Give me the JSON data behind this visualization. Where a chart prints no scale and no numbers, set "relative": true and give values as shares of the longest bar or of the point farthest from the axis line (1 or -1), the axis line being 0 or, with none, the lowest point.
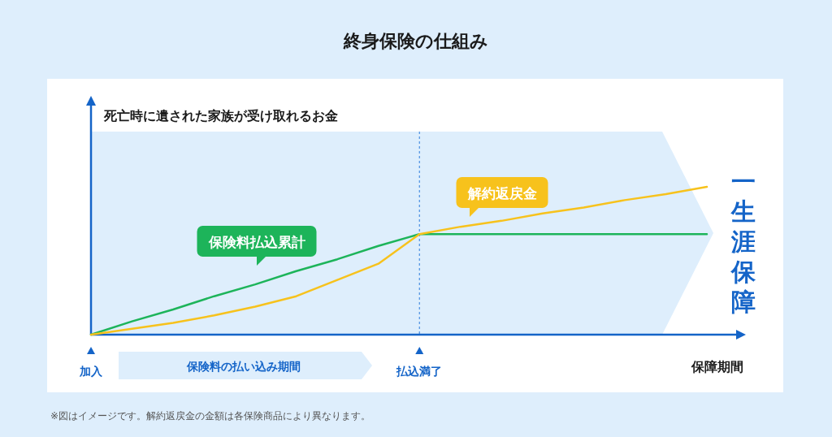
{
  "chart_data": {
    "type": "line",
    "title": "終身保険の仕組み",
    "ylabel": "死亡時に遺された家族が受け取れるお金",
    "xlabel": "保障期間",
    "categories": [
      "加入",
      null,
      null,
      null,
      null,
      null,
      null,
      null,
      "払込満了",
      null,
      null,
      null,
      null,
      null,
      null,
      null
    ],
    "relative": true,
    "series": [
      {
        "name": "保険料払込累計",
        "color": "#1db45a",
        "values": [
          0,
          0.09,
          0.17,
          0.26,
          0.34,
          0.43,
          0.51,
          0.6,
          0.68,
          0.68,
          0.68,
          0.68,
          0.68,
          0.68,
          0.68,
          0.68
        ]
      },
      {
        "name": "解約返戻金",
        "color": "#f7c21c",
        "values": [
          0,
          0.04,
          0.08,
          0.13,
          0.19,
          0.26,
          0.37,
          0.48,
          0.68,
          0.73,
          0.77,
          0.82,
          0.86,
          0.91,
          0.95,
          1.0
        ]
      }
    ],
    "ref_lines": [
      {
        "axis": "x",
        "value": "払込満了",
        "color": "#4a90e2",
        "line_style": "dotted"
      }
    ],
    "annotations": [
      "保険料の払い込み期間",
      "一生涯保障",
      "※図はイメージです。解約返戻金の金額は各保険商品により異なります。"
    ]
  }
}
